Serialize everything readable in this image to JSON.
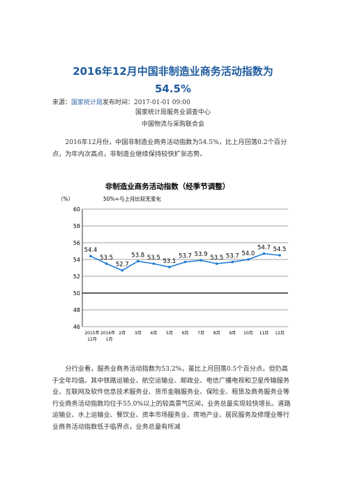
{
  "article": {
    "title_line1": "2016年12月中国非制造业商务活动指数为",
    "title_line2": "54.5%",
    "source_label": "来源：",
    "source_name": "国家统计局",
    "time_label": "发布时间：2017-01-01  09:00",
    "org_line1": "国家统计局服务业调查中心",
    "org_line2": "中国物流与采购联合会",
    "paragraph1": "2016年12月份，中国非制造业商务活动指数为54.5%，比上月回落0.2个百分点，为年内次高点，非制造业继续保持较快扩张态势。",
    "paragraph2": "分行业看，服务业商务活动指数为53.2%，虽比上月回落0.5个百分点，但仍高于全年均值。其中铁路运输业、航空运输业、邮政业、电信广播电视和卫星传输服务业、互联网及软件信息技术服务业、货币金融服务业、保险业、租赁及商务服务业等行业商务活动指数均位于55.0%以上的较高景气区间，业务总量实现较快增长。道路运输业、水上运输业、餐饮业、资本市场服务业、房地产业、居民服务及修理业等行业商务活动指数低于临界点，业务总量有所减"
  },
  "chart_data": {
    "type": "line",
    "title": "非制造业商务活动指数（经季节调整）",
    "unit_label": "（%）",
    "reference_label": "50%=与上月比较无变化",
    "categories": [
      "2015年12月",
      "2016年1月",
      "2月",
      "3月",
      "4月",
      "5月",
      "6月",
      "7月",
      "8月",
      "9月",
      "10月",
      "11月",
      "12月"
    ],
    "values": [
      54.4,
      53.5,
      52.7,
      53.8,
      53.5,
      53.1,
      53.7,
      53.9,
      53.5,
      53.7,
      54.0,
      54.7,
      54.5
    ],
    "data_labels": [
      "54.4",
      "53.5",
      "52.7",
      "53.8",
      "53.5",
      "53.1",
      "53.7",
      "53.9",
      "53.5",
      "53.7",
      "54.0",
      "54.7",
      "54.5"
    ],
    "yticks": [
      "60",
      "58",
      "56",
      "54",
      "52",
      "50",
      "48",
      "46"
    ],
    "ylim": [
      46,
      60
    ],
    "line_color": "#1f7ad6",
    "reference_value": 50
  }
}
